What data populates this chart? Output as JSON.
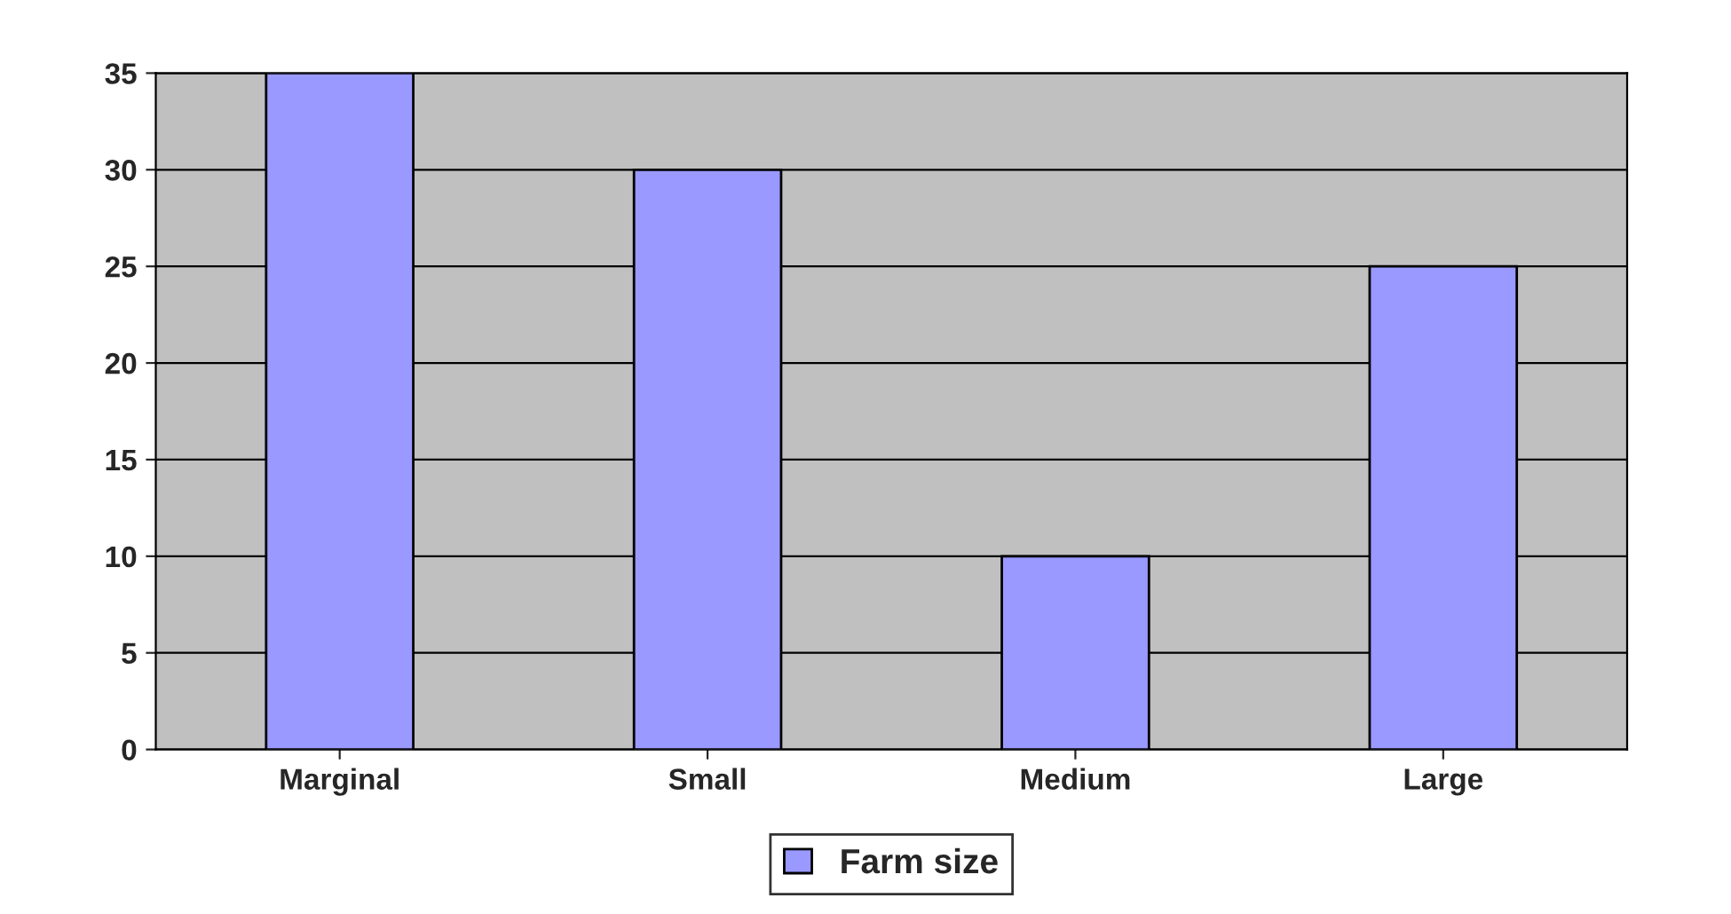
{
  "chart_data": {
    "type": "bar",
    "categories": [
      "Marginal",
      "Small",
      "Medium",
      "Large"
    ],
    "series": [
      {
        "name": "Farm size",
        "color": "#9999ff",
        "values": [
          35,
          30,
          10,
          25
        ]
      }
    ],
    "ylim": [
      0,
      35
    ],
    "yticks": [
      0,
      5,
      10,
      15,
      20,
      25,
      30,
      35
    ],
    "grid": "y",
    "legend": "bottom"
  }
}
